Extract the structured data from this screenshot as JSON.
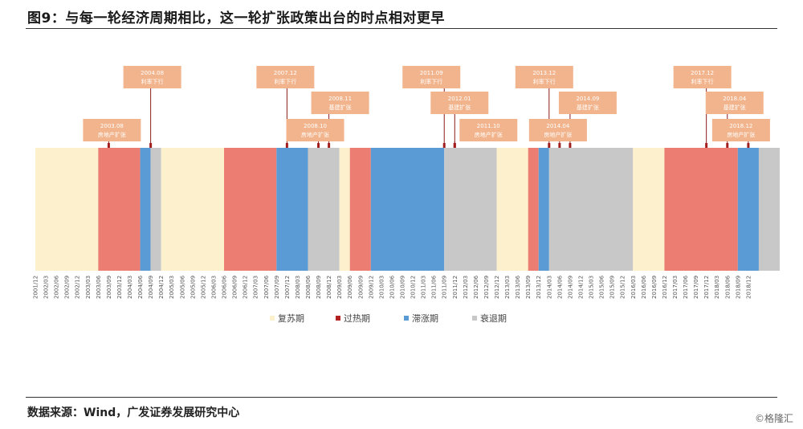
{
  "header": {
    "title": "图9：与每一轮经济周期相比，这一轮扩张政策出台的时点相对更早"
  },
  "footer": {
    "source": "数据来源：Wind，广发证券发展研究中心",
    "watermark": "©格隆汇"
  },
  "colors": {
    "复苏期": "#fdf0cc",
    "过热期": "#ec7d72",
    "滞涨期": "#5b9bd5",
    "衰退期": "#c8c8c8",
    "callout_bg": "#f2b48c",
    "callout_line": "#8b1a1a",
    "marker": "#a31f1f"
  },
  "chart_data": {
    "type": "bar",
    "x_ticks": [
      "2001/12",
      "2002/03",
      "2002/06",
      "2002/09",
      "2002/12",
      "2003/03",
      "2003/06",
      "2003/09",
      "2003/12",
      "2004/03",
      "2004/06",
      "2004/09",
      "2004/12",
      "2005/03",
      "2005/06",
      "2005/09",
      "2005/12",
      "2006/03",
      "2006/06",
      "2006/09",
      "2006/12",
      "2007/03",
      "2007/06",
      "2007/09",
      "2007/12",
      "2008/03",
      "2008/06",
      "2008/09",
      "2008/12",
      "2009/03",
      "2009/06",
      "2009/09",
      "2009/12",
      "2010/03",
      "2010/06",
      "2010/09",
      "2010/12",
      "2011/03",
      "2011/06",
      "2011/09",
      "2011/12",
      "2012/03",
      "2012/06",
      "2012/09",
      "2012/12",
      "2013/03",
      "2013/06",
      "2013/09",
      "2013/12",
      "2014/03",
      "2014/06",
      "2014/09",
      "2014/12",
      "2015/03",
      "2015/06",
      "2015/09",
      "2015/12",
      "2016/03",
      "2016/06",
      "2016/09",
      "2016/12",
      "2017/03",
      "2017/06",
      "2017/09",
      "2017/12",
      "2018/03",
      "2018/06",
      "2018/09",
      "2018/12"
    ],
    "legend": [
      "复苏期",
      "过热期",
      "滞涨期",
      "衰退期"
    ],
    "legend_position": "bottom",
    "phases": [
      {
        "phase": "复苏期",
        "start": "2001/12",
        "end": "2003/06"
      },
      {
        "phase": "过热期",
        "start": "2003/06",
        "end": "2004/06"
      },
      {
        "phase": "滞涨期",
        "start": "2004/06",
        "end": "2004/09"
      },
      {
        "phase": "衰退期",
        "start": "2004/09",
        "end": "2004/12"
      },
      {
        "phase": "复苏期",
        "start": "2004/12",
        "end": "2006/06"
      },
      {
        "phase": "过热期",
        "start": "2006/06",
        "end": "2007/09"
      },
      {
        "phase": "滞涨期",
        "start": "2007/09",
        "end": "2008/06"
      },
      {
        "phase": "衰退期",
        "start": "2008/06",
        "end": "2009/03"
      },
      {
        "phase": "复苏期",
        "start": "2009/03",
        "end": "2009/06"
      },
      {
        "phase": "过热期",
        "start": "2009/06",
        "end": "2009/12"
      },
      {
        "phase": "滞涨期",
        "start": "2009/12",
        "end": "2011/09"
      },
      {
        "phase": "衰退期",
        "start": "2011/09",
        "end": "2012/12"
      },
      {
        "phase": "复苏期",
        "start": "2012/12",
        "end": "2013/09"
      },
      {
        "phase": "过热期",
        "start": "2013/09",
        "end": "2013/12"
      },
      {
        "phase": "滞涨期",
        "start": "2013/12",
        "end": "2014/03"
      },
      {
        "phase": "衰退期",
        "start": "2014/03",
        "end": "2016/03"
      },
      {
        "phase": "复苏期",
        "start": "2016/03",
        "end": "2016/12"
      },
      {
        "phase": "过热期",
        "start": "2016/12",
        "end": "2018/09"
      },
      {
        "phase": "滞涨期",
        "start": "2018/09",
        "end": "2019/03"
      },
      {
        "phase": "衰退期",
        "start": "2019/03",
        "end": "2019/09"
      }
    ],
    "annotations": [
      {
        "date": "2003.08",
        "label": "房地产扩张",
        "anchor": "2003/09",
        "level": 3
      },
      {
        "date": "2004.08",
        "label": "利率下行",
        "anchor": "2004/09",
        "level": 1
      },
      {
        "date": "2007.12",
        "label": "利率下行",
        "anchor": "2007/12",
        "level": 1
      },
      {
        "date": "2008.11",
        "label": "基建扩张",
        "anchor": "2008/12",
        "level": 2
      },
      {
        "date": "2008.10",
        "label": "房地产扩张",
        "anchor": "2008/09",
        "level": 3
      },
      {
        "date": "2011.09",
        "label": "利率下行",
        "anchor": "2011/09",
        "level": 1
      },
      {
        "date": "2012.01",
        "label": "基建扩张",
        "anchor": "2011/12",
        "level": 2
      },
      {
        "date": "2011.10",
        "label": "房地产扩张",
        "anchor": "2011/12",
        "level": 3
      },
      {
        "date": "2013.12",
        "label": "利率下行",
        "anchor": "2014/03",
        "level": 1
      },
      {
        "date": "2014.09",
        "label": "基建扩张",
        "anchor": "2014/09",
        "level": 2
      },
      {
        "date": "2014.04",
        "label": "房地产扩张",
        "anchor": "2014/06",
        "level": 3
      },
      {
        "date": "2017.12",
        "label": "利率下行",
        "anchor": "2017/12",
        "level": 1
      },
      {
        "date": "2018.04",
        "label": "基建扩张",
        "anchor": "2018/06",
        "level": 2
      },
      {
        "date": "2018.12",
        "label": "房地产扩张",
        "anchor": "2018/12",
        "level": 3
      }
    ]
  }
}
